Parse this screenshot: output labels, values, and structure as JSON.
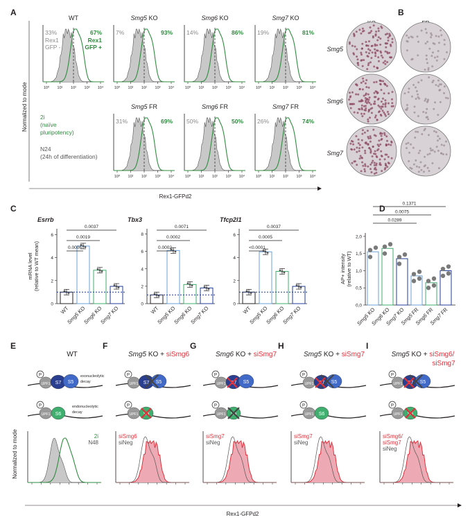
{
  "panel_letters": [
    "A",
    "B",
    "C",
    "D",
    "E",
    "F",
    "G",
    "H",
    "I"
  ],
  "colors": {
    "green": "#2e8b3e",
    "grey_fill": "#c8c8c8",
    "grey_text": "#8a8a8a",
    "red": "#e0303a",
    "pink_fill": "#eeaab4",
    "blue_dot": "#1f3d99",
    "blue_dark": "#2a3f8f",
    "blue_mid": "#4169c8",
    "blue_light": "#6aa0d8",
    "s6_green": "#3fae6e",
    "upf_grey": "#9a9a9a"
  },
  "panelA": {
    "y_label": "Normalized to mode",
    "x_label": "Rex1-GFPd2",
    "axis_ticks": [
      "10⁰",
      "10¹",
      "10²",
      "10³",
      "10⁴"
    ],
    "row1": [
      {
        "title": "WT",
        "grey_pct": "33%",
        "green_pct": "67%",
        "gate_left": "Rex1\nGFP -",
        "gate_right": "Rex1\nGFP +"
      },
      {
        "title_italic": "Smg5",
        "title_rest": " KO",
        "grey_pct": "7%",
        "green_pct": "93%"
      },
      {
        "title_italic": "Smg6",
        "title_rest": " KO",
        "grey_pct": "14%",
        "green_pct": "86%"
      },
      {
        "title_italic": "Smg7",
        "title_rest": " KO",
        "grey_pct": "19%",
        "green_pct": "81%"
      }
    ],
    "row2": [
      {
        "title_italic": "Smg5",
        "title_rest": " FR",
        "grey_pct": "31%",
        "green_pct": "69%"
      },
      {
        "title_italic": "Smg6",
        "title_rest": " FR",
        "grey_pct": "50%",
        "green_pct": "50%"
      },
      {
        "title_italic": "Smg7",
        "title_rest": " FR",
        "grey_pct": "26%",
        "green_pct": "74%"
      }
    ],
    "legend_green": [
      "2i",
      "(naïve",
      "pluripotency)"
    ],
    "legend_grey": [
      "N24",
      "(24h of differentiation)"
    ]
  },
  "panelC": {
    "columns": [
      "KO",
      "FR"
    ],
    "rows": [
      "Smg5",
      "Smg6",
      "Smg7"
    ]
  },
  "panelB": {
    "y_label": [
      "mRNA level",
      "(relative to WT mean)"
    ],
    "x_categories": [
      {
        "it": "",
        "rest": "WT"
      },
      {
        "it": "Smg5",
        "rest": " KO"
      },
      {
        "it": "Smg6",
        "rest": " KO"
      },
      {
        "it": "Smg7",
        "rest": " KO"
      }
    ],
    "y_ticks_a": [
      "0",
      "2",
      "4",
      "6"
    ],
    "y_ticks_b": [
      "0",
      "2",
      "4",
      "6",
      "8"
    ],
    "charts": [
      {
        "title": "Esrrb",
        "values": [
          1.0,
          5.0,
          2.9,
          1.5
        ],
        "ylim": [
          0,
          6.5
        ],
        "pvalues": [
          "0.0037",
          "0.0019",
          "0.0006"
        ]
      },
      {
        "title": "Tbx3",
        "values": [
          1.0,
          6.1,
          2.2,
          1.8
        ],
        "ylim": [
          0,
          8.6
        ],
        "pvalues": [
          "0.0071",
          "0.0002",
          "0.0002"
        ]
      },
      {
        "title": "Tfcp2l1",
        "values": [
          1.0,
          4.5,
          2.8,
          1.5
        ],
        "ylim": [
          0,
          6.5
        ],
        "pvalues": [
          "0.0037",
          "0.0005",
          "<0.0001"
        ]
      }
    ]
  },
  "panelD": {
    "y_label": [
      "AP+ intensity",
      "(relative to WT)"
    ],
    "y_ticks": [
      "0,0",
      "0,5",
      "1,0",
      "1,5",
      "2,0"
    ],
    "categories": [
      {
        "it": "Smg5",
        "rest": " KO"
      },
      {
        "it": "Smg6",
        "rest": " KO"
      },
      {
        "it": "Smg7",
        "rest": " KO"
      },
      {
        "it": "Smg5",
        "rest": " FR"
      },
      {
        "it": "Smg6",
        "rest": " FR"
      },
      {
        "it": "Smg7",
        "rest": " FR"
      }
    ],
    "values": [
      1.55,
      1.65,
      1.35,
      0.85,
      0.65,
      1.0
    ],
    "ylim": [
      0,
      2.1
    ],
    "pvalues": [
      "0.1371",
      "0.0075",
      "0.0289"
    ]
  },
  "lower_panels": [
    {
      "letter": "E",
      "title": [
        {
          "t": "WT",
          "c": "k"
        }
      ],
      "legend": [
        {
          "t": "2i",
          "c": "green"
        },
        {
          "t": "N48",
          "c": "grey"
        }
      ],
      "top_label": "exonucleolytic\ndecay",
      "bot_label": "endonucleolytic\ndecay"
    },
    {
      "letter": "F",
      "title": [
        {
          "t": "Smg5",
          "c": "k",
          "i": true
        },
        {
          "t": " KO + ",
          "c": "k"
        },
        {
          "t": "siSmg6",
          "c": "red"
        }
      ],
      "legend": [
        {
          "t": "siSmg6",
          "c": "red"
        },
        {
          "t": "siNeg",
          "c": "grey"
        }
      ]
    },
    {
      "letter": "G",
      "title": [
        {
          "t": "Smg6",
          "c": "k",
          "i": true
        },
        {
          "t": " KO + ",
          "c": "k"
        },
        {
          "t": "siSmg7",
          "c": "red"
        }
      ],
      "legend": [
        {
          "t": "siSmg7",
          "c": "red"
        },
        {
          "t": "siNeg",
          "c": "grey"
        }
      ]
    },
    {
      "letter": "H",
      "title": [
        {
          "t": "Smg5",
          "c": "k",
          "i": true
        },
        {
          "t": " KO + ",
          "c": "k"
        },
        {
          "t": "siSmg7",
          "c": "red"
        }
      ],
      "legend": [
        {
          "t": "siSmg7",
          "c": "red"
        },
        {
          "t": "siNeg",
          "c": "grey"
        }
      ]
    },
    {
      "letter": "I",
      "title": [
        {
          "t": "Smg5",
          "c": "k",
          "i": true
        },
        {
          "t": " KO + ",
          "c": "k"
        },
        {
          "t": "siSmg6/",
          "c": "red"
        }
      ],
      "title2": "siSmg7",
      "legend": [
        {
          "t": "siSmg6/",
          "c": "red"
        },
        {
          "t": "siSmg7",
          "c": "red"
        },
        {
          "t": "siNeg",
          "c": "grey"
        }
      ]
    }
  ],
  "lower": {
    "y_label": "Normalized to mode",
    "x_label": "Rex1-GFPd2",
    "labels": {
      "p": "P",
      "upf1": "UPF1",
      "s7": "S7",
      "s5": "S5",
      "s6": "S6"
    }
  },
  "chart_data": {
    "type": "bar",
    "charts": [
      {
        "title": "Esrrb",
        "categories": [
          "WT",
          "Smg5 KO",
          "Smg6 KO",
          "Smg7 KO"
        ],
        "values": [
          1.0,
          5.0,
          2.9,
          1.5
        ],
        "ylabel": "mRNA level (relative to WT mean)",
        "ylim": [
          0,
          6.5
        ]
      },
      {
        "title": "Tbx3",
        "categories": [
          "WT",
          "Smg5 KO",
          "Smg6 KO",
          "Smg7 KO"
        ],
        "values": [
          1.0,
          6.1,
          2.2,
          1.8
        ],
        "ylabel": "mRNA level (relative to WT mean)",
        "ylim": [
          0,
          8.6
        ]
      },
      {
        "title": "Tfcp2l1",
        "categories": [
          "WT",
          "Smg5 KO",
          "Smg6 KO",
          "Smg7 KO"
        ],
        "values": [
          1.0,
          4.5,
          2.8,
          1.5
        ],
        "ylabel": "mRNA level (relative to WT mean)",
        "ylim": [
          0,
          6.5
        ]
      },
      {
        "title": "",
        "categories": [
          "Smg5 KO",
          "Smg6 KO",
          "Smg7 KO",
          "Smg5 FR",
          "Smg6 FR",
          "Smg7 FR"
        ],
        "values": [
          1.55,
          1.65,
          1.35,
          0.85,
          0.65,
          1.0
        ],
        "ylabel": "AP+ intensity (relative to WT)",
        "ylim": [
          0,
          2.1
        ]
      }
    ]
  }
}
